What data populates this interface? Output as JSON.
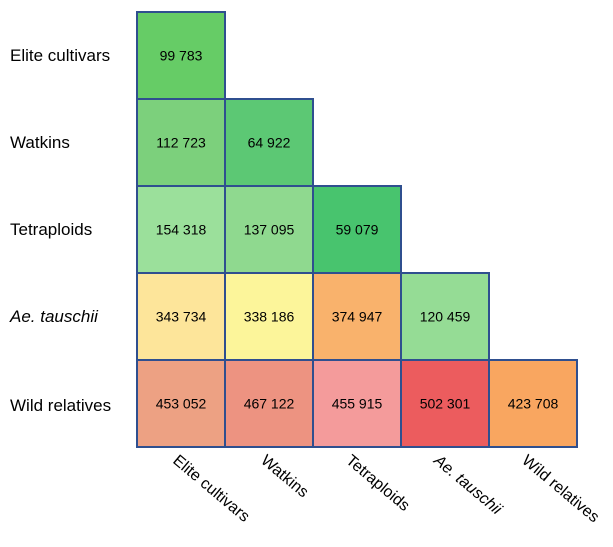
{
  "chart_data": {
    "type": "heatmap",
    "title": "",
    "rows": [
      "Elite cultivars",
      "Watkins",
      "Tetraploids",
      "Ae. tauschii",
      "Wild relatives"
    ],
    "columns": [
      "Elite cultivars",
      "Watkins",
      "Tetraploids",
      "Ae. tauschii",
      "Wild relatives"
    ],
    "italic_labels": [
      "Ae. tauschii"
    ],
    "cells": [
      [
        "99 783"
      ],
      [
        "112 723",
        "64 922"
      ],
      [
        "154 318",
        "137 095",
        "59 079"
      ],
      [
        "343 734",
        "338 186",
        "374 947",
        "120 459"
      ],
      [
        "453 052",
        "467 122",
        "455 915",
        "502 301",
        "423 708"
      ]
    ],
    "values": [
      [
        99783
      ],
      [
        112723,
        64922
      ],
      [
        154318,
        137095,
        59079
      ],
      [
        343734,
        338186,
        374947,
        120459
      ],
      [
        453052,
        467122,
        455915,
        502301,
        423708
      ]
    ],
    "colors": [
      [
        "#66cc66"
      ],
      [
        "#7cd07c",
        "#5cc874"
      ],
      [
        "#9be09b",
        "#8fd98f",
        "#48c46e"
      ],
      [
        "#fde59a",
        "#fcf59a",
        "#f9b26c",
        "#95dc95"
      ],
      [
        "#eda183",
        "#ed9381",
        "#f49b9b",
        "#ec5c5e",
        "#f9a660"
      ]
    ],
    "cell_border_color": "#2f4f8f"
  }
}
